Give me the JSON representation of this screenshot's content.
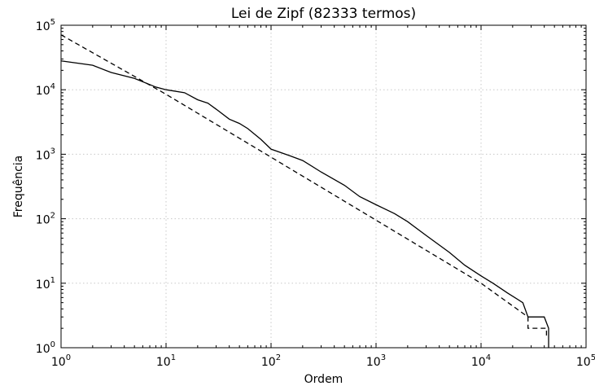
{
  "chart_data": {
    "type": "line",
    "title": "Lei de Zipf (82333 termos)",
    "xlabel": "Ordem",
    "ylabel": "Frequência",
    "xscale": "log",
    "yscale": "log",
    "xlim": [
      1,
      100000
    ],
    "ylim": [
      1,
      100000
    ],
    "grid": true,
    "x_ticks": [
      {
        "base": "10",
        "exp": "0",
        "value": 1
      },
      {
        "base": "10",
        "exp": "1",
        "value": 10
      },
      {
        "base": "10",
        "exp": "2",
        "value": 100
      },
      {
        "base": "10",
        "exp": "3",
        "value": 1000
      },
      {
        "base": "10",
        "exp": "4",
        "value": 10000
      },
      {
        "base": "10",
        "exp": "5",
        "value": 100000
      }
    ],
    "y_ticks": [
      {
        "base": "10",
        "exp": "0",
        "value": 1
      },
      {
        "base": "10",
        "exp": "1",
        "value": 10
      },
      {
        "base": "10",
        "exp": "2",
        "value": 100
      },
      {
        "base": "10",
        "exp": "3",
        "value": 1000
      },
      {
        "base": "10",
        "exp": "4",
        "value": 10000
      },
      {
        "base": "10",
        "exp": "5",
        "value": 100000
      }
    ],
    "series": [
      {
        "style": "solid",
        "color": "#000000",
        "x": [
          1,
          2,
          3,
          5,
          8,
          10,
          15,
          20,
          25,
          30,
          40,
          50,
          60,
          80,
          100,
          150,
          200,
          300,
          500,
          700,
          1000,
          1500,
          2000,
          3000,
          5000,
          7000,
          10000,
          13000,
          18000,
          25000,
          28000,
          35000,
          40000,
          44000,
          44000
        ],
        "y": [
          28000,
          24000,
          18500,
          15000,
          11000,
          10000,
          9000,
          7000,
          6200,
          5000,
          3500,
          3000,
          2500,
          1700,
          1200,
          950,
          800,
          530,
          330,
          220,
          165,
          120,
          90,
          55,
          30,
          19,
          13,
          10,
          7,
          5,
          3,
          3,
          3,
          2,
          1
        ]
      },
      {
        "style": "dashed",
        "color": "#000000",
        "x": [
          1,
          10,
          100,
          1000,
          10000,
          28000,
          28000,
          30000,
          42000,
          42000
        ],
        "y": [
          71000,
          8500,
          900,
          95,
          10,
          3,
          2,
          2,
          2,
          1.5
        ]
      }
    ]
  }
}
